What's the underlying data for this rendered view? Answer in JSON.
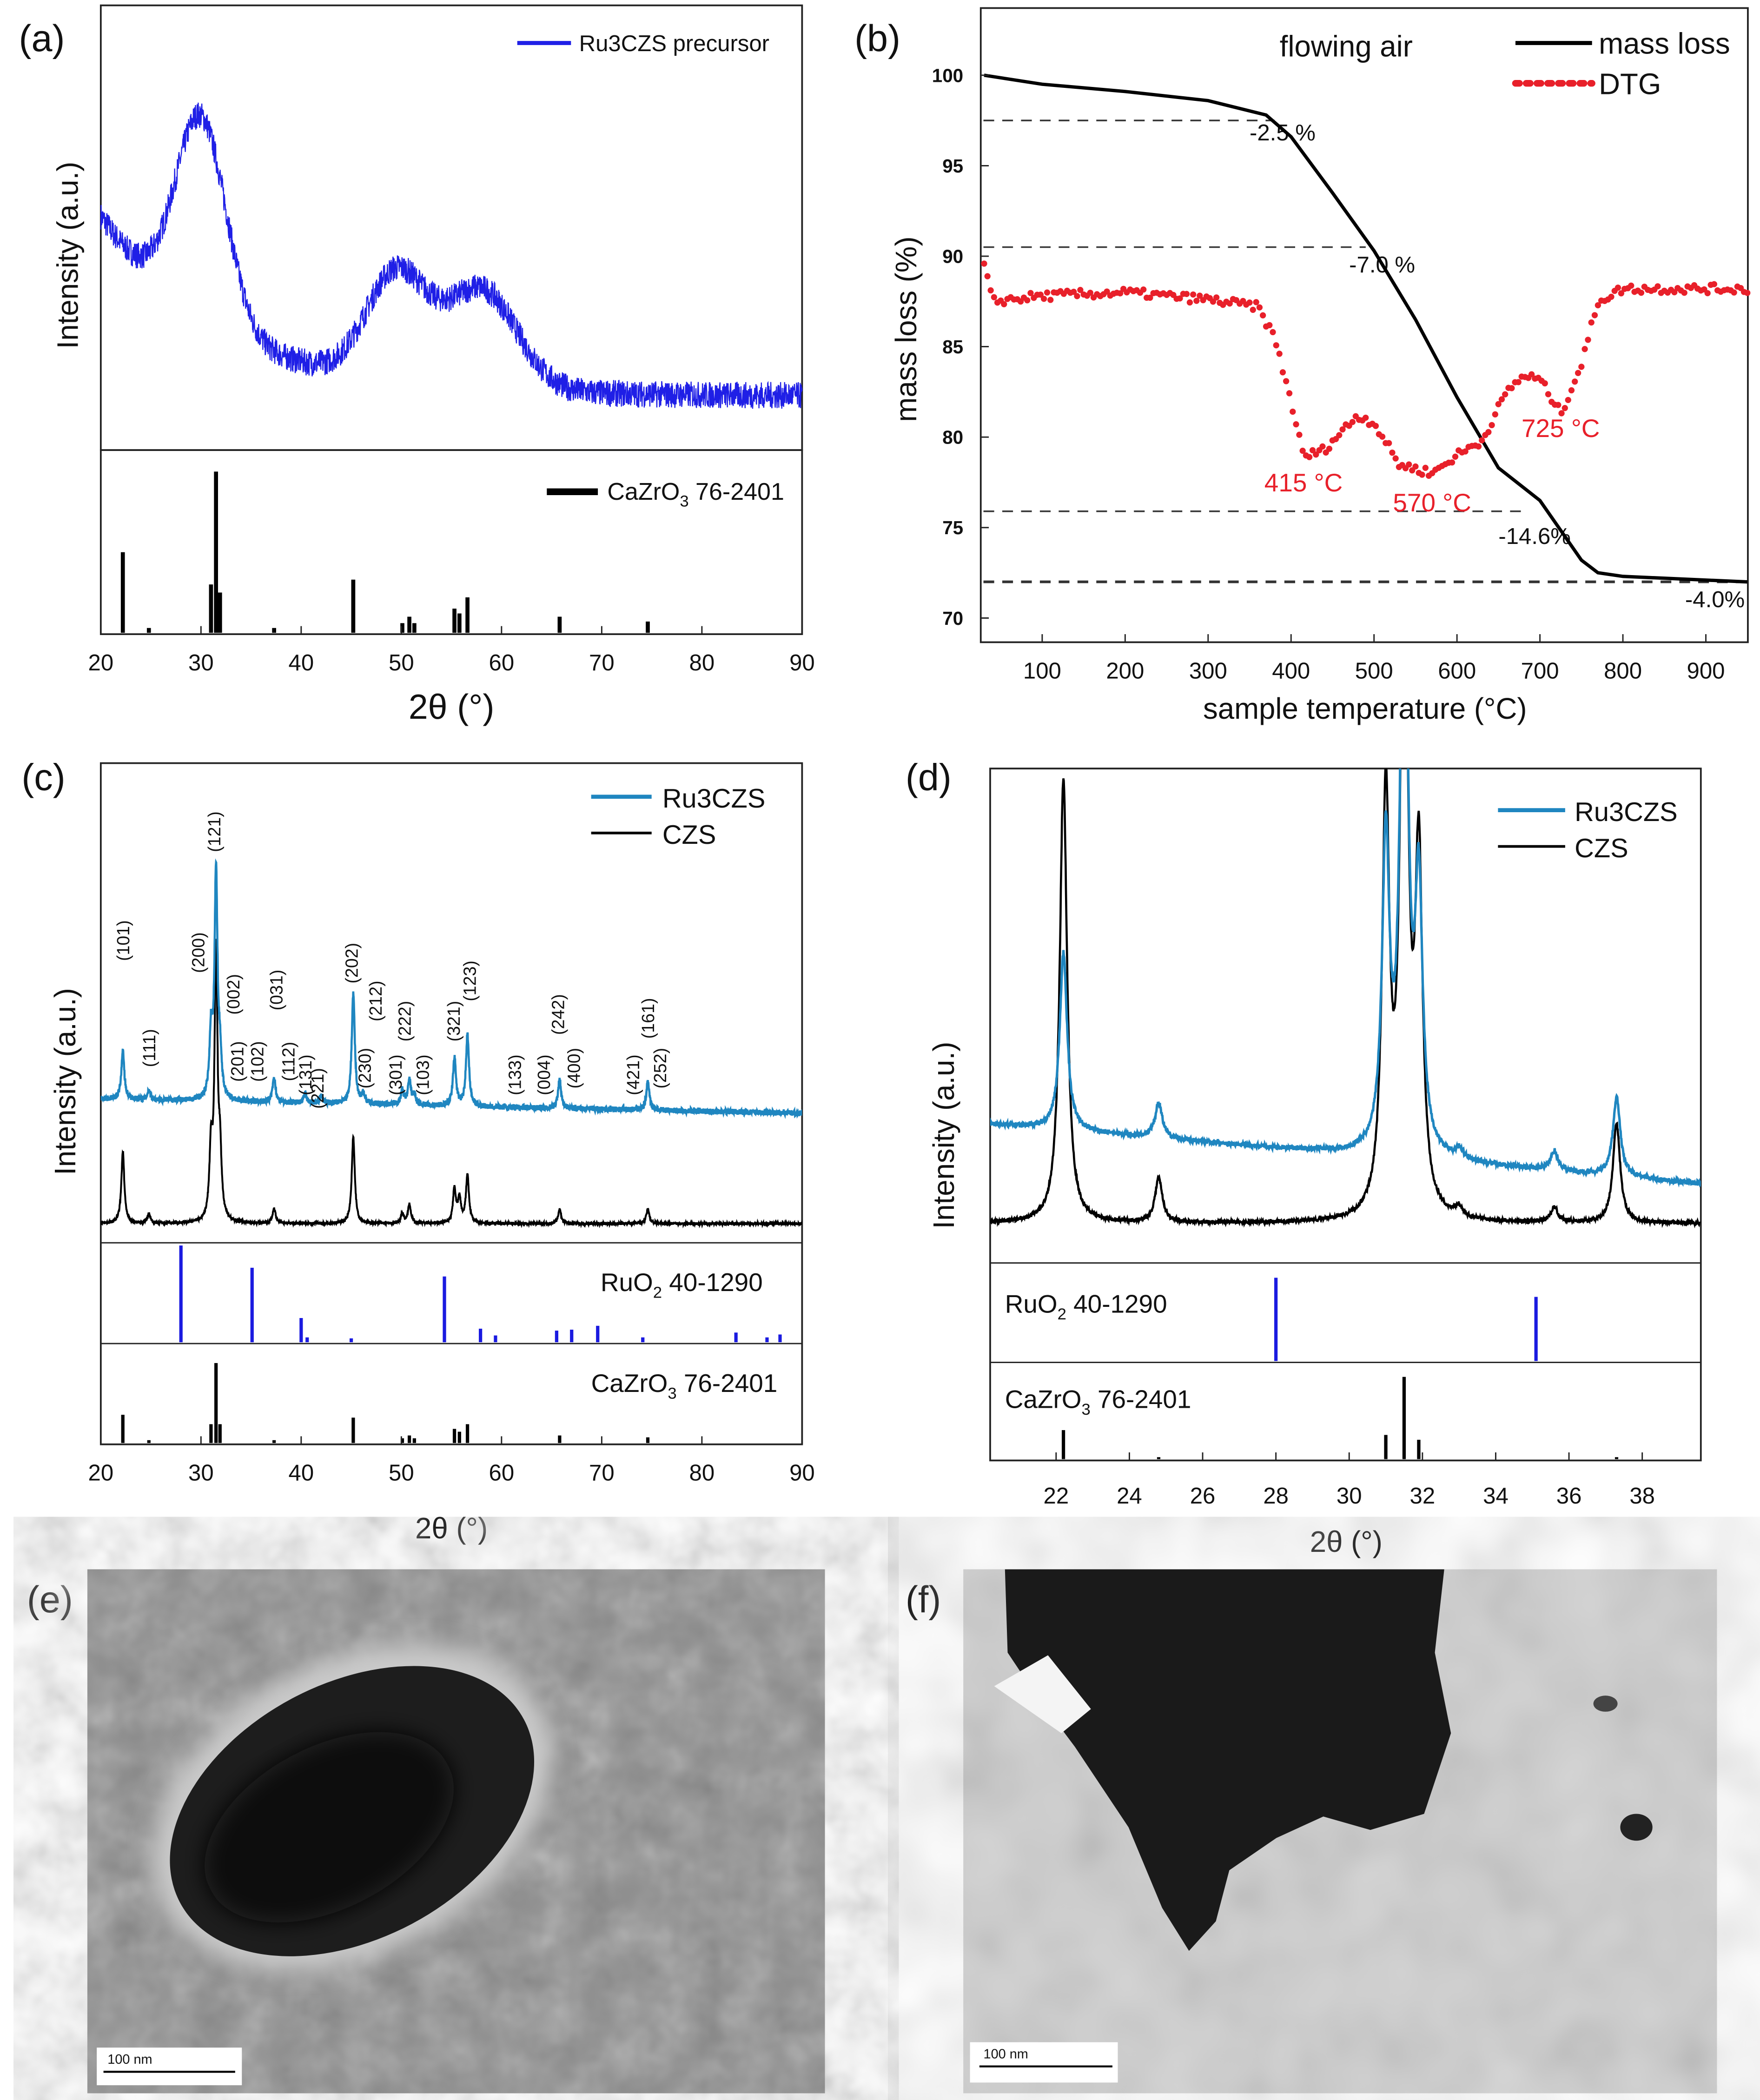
{
  "colors": {
    "precursor": "#1f1fe6",
    "ru3czs": "#1f86c0",
    "czs": "#000000",
    "dtg": "#e8202a",
    "ruo2_ref": "#1a1ae0",
    "cazro3_ref": "#000000"
  },
  "panel_labels": [
    "(a)",
    "(b)",
    "(c)",
    "(d)",
    "(e)",
    "(f)"
  ],
  "chart_data": [
    {
      "panel": "a",
      "type": "line",
      "xlabel": "2θ (°)",
      "ylabel": "Intensity (a.u.)",
      "xlim": [
        20,
        90
      ],
      "xticks": [
        20,
        30,
        40,
        50,
        60,
        70,
        80,
        90
      ],
      "ylim": [
        0,
        100
      ],
      "legend": "top-right",
      "series": [
        {
          "name": "Ru3CZS precursor",
          "background": {
            "offset": 12,
            "amp": 40,
            "decay": 12
          },
          "noise": 3,
          "hwhm": 0,
          "gauss_peaks": [
            [
              30,
              45,
              2.5
            ],
            [
              49.5,
              24,
              3
            ],
            [
              58,
              22,
              3.5
            ]
          ]
        }
      ],
      "reference": {
        "label_main": "CaZrO",
        "label_sub": "3",
        "label_rest": " 76-2401",
        "sticks": [
          [
            22.2,
            0.5
          ],
          [
            24.8,
            0.03
          ],
          [
            31.0,
            0.3
          ],
          [
            31.5,
            1.0
          ],
          [
            31.9,
            0.25
          ],
          [
            37.3,
            0.03
          ],
          [
            45.2,
            0.33
          ],
          [
            50.1,
            0.06
          ],
          [
            50.8,
            0.1
          ],
          [
            51.3,
            0.06
          ],
          [
            55.3,
            0.15
          ],
          [
            55.8,
            0.12
          ],
          [
            56.6,
            0.22
          ],
          [
            65.8,
            0.1
          ],
          [
            74.6,
            0.07
          ]
        ]
      }
    },
    {
      "panel": "b",
      "type": "line",
      "xlabel": "sample temperature (°C)",
      "ylabel": "mass loss (%)",
      "xlim": [
        30,
        950
      ],
      "ylim": [
        70,
        100
      ],
      "xticks": [
        100,
        200,
        300,
        400,
        500,
        600,
        700,
        800,
        900
      ],
      "yticks": [
        100,
        95,
        90,
        85,
        80,
        75,
        70
      ],
      "annotation_title": "flowing air",
      "series": [
        {
          "name": "mass loss",
          "style": "solid",
          "points": [
            [
              30,
              100
            ],
            [
              100,
              99.5
            ],
            [
              200,
              99.1
            ],
            [
              300,
              98.6
            ],
            [
              370,
              97.8
            ],
            [
              400,
              96.6
            ],
            [
              450,
              93.5
            ],
            [
              500,
              90.3
            ],
            [
              550,
              86.5
            ],
            [
              600,
              82.2
            ],
            [
              650,
              78.3
            ],
            [
              700,
              76.5
            ],
            [
              750,
              73.2
            ],
            [
              770,
              72.5
            ],
            [
              800,
              72.3
            ],
            [
              950,
              72.0
            ]
          ]
        },
        {
          "name": "DTG",
          "style": "dotted",
          "points": [
            [
              30,
              89.5
            ],
            [
              40,
              87.5
            ],
            [
              100,
              87.8
            ],
            [
              200,
              88
            ],
            [
              300,
              87.6
            ],
            [
              360,
              87.2
            ],
            [
              380,
              85.5
            ],
            [
              400,
              82
            ],
            [
              415,
              78.9
            ],
            [
              440,
              79.3
            ],
            [
              480,
              81.2
            ],
            [
              500,
              80.8
            ],
            [
              530,
              78.5
            ],
            [
              570,
              78
            ],
            [
              600,
              79
            ],
            [
              630,
              79.8
            ],
            [
              660,
              82.5
            ],
            [
              680,
              83.4
            ],
            [
              700,
              83.2
            ],
            [
              725,
              81.3
            ],
            [
              750,
              84
            ],
            [
              770,
              87.5
            ],
            [
              800,
              88.2
            ],
            [
              950,
              88.2
            ]
          ]
        }
      ],
      "steps": [
        {
          "level": 97.5,
          "to": 380,
          "label": "-2.5 %",
          "lx": 350,
          "ly": 96.4
        },
        {
          "level": 90.5,
          "to": 490,
          "label": "-7.0 %",
          "lx": 470,
          "ly": 89.1
        },
        {
          "level": 75.9,
          "to": 685,
          "label": "-14.6%",
          "lx": 650,
          "ly": 74.1
        },
        {
          "level": 72.0,
          "to": 950,
          "label": "-4.0%",
          "lx": 875,
          "ly": 70.6,
          "bold": true
        }
      ],
      "dtg_labels": [
        {
          "label": "415 °C",
          "x": 415,
          "y": 77.0
        },
        {
          "label": "570 °C",
          "x": 570,
          "y": 75.9
        },
        {
          "label": "725 °C",
          "x": 725,
          "y": 80.0
        }
      ]
    },
    {
      "panel": "c",
      "type": "line",
      "xlabel": "2θ (°)",
      "ylabel": "Intensity (a.u.)",
      "xlim": [
        20,
        90
      ],
      "xticks": [
        20,
        30,
        40,
        50,
        60,
        70,
        80,
        90
      ],
      "ylim": [
        0,
        100
      ],
      "legend": "top-right",
      "series": [
        {
          "name": "Ru3CZS",
          "base": [
            30,
            27
          ],
          "hwhm": 0.18,
          "noise": 0.6,
          "peaks": [
            [
              22.2,
              10
            ],
            [
              24.8,
              2
            ],
            [
              31.0,
              13
            ],
            [
              31.5,
              47
            ],
            [
              31.9,
              8
            ],
            [
              37.3,
              5
            ],
            [
              40.4,
              2
            ],
            [
              42,
              1.5
            ],
            [
              45.2,
              23
            ],
            [
              46.2,
              2
            ],
            [
              50.1,
              3
            ],
            [
              50.8,
              5
            ],
            [
              51.3,
              2
            ],
            [
              55.3,
              10
            ],
            [
              56.6,
              15
            ],
            [
              65.8,
              6
            ],
            [
              74.6,
              6
            ]
          ]
        },
        {
          "name": "CZS",
          "base": [
            4,
            4
          ],
          "hwhm": 0.18,
          "noise": 0.3,
          "peaks": [
            [
              22.2,
              15
            ],
            [
              24.8,
              2
            ],
            [
              31.0,
              14
            ],
            [
              31.5,
              56
            ],
            [
              31.9,
              12
            ],
            [
              37.3,
              3
            ],
            [
              45.2,
              18
            ],
            [
              50.1,
              2
            ],
            [
              50.8,
              4
            ],
            [
              55.3,
              7
            ],
            [
              55.8,
              5
            ],
            [
              56.6,
              10
            ],
            [
              65.8,
              3
            ],
            [
              74.6,
              3
            ]
          ]
        }
      ],
      "hkl": [
        [
          "(101)",
          22.3,
          63
        ],
        [
          "(111)",
          24.9,
          40.6
        ],
        [
          "(200)",
          29.8,
          60.5
        ],
        [
          "(121)",
          31.4,
          85.7
        ],
        [
          "(002)",
          33.3,
          51.8
        ],
        [
          "(201)",
          33.7,
          37.8
        ],
        [
          "(102)",
          35.7,
          37.8
        ],
        [
          "(031)",
          37.6,
          52.7
        ],
        [
          "(112)",
          38.8,
          37.8
        ],
        [
          "(131)",
          40.5,
          35
        ],
        [
          "(221)",
          41.7,
          32.2
        ],
        [
          "(202)",
          45.1,
          58.3
        ],
        [
          "(212)",
          47.5,
          50.4
        ],
        [
          "(230)",
          46.4,
          36.4
        ],
        [
          "(222)",
          50.4,
          46.2
        ],
        [
          "(301)",
          49.5,
          35
        ],
        [
          "(103)",
          52.2,
          35
        ],
        [
          "(321)",
          55.3,
          46.2
        ],
        [
          "(123)",
          56.9,
          54.6
        ],
        [
          "(133)",
          61.4,
          35
        ],
        [
          "(004)",
          64.3,
          35
        ],
        [
          "(242)",
          65.7,
          47.6
        ],
        [
          "(400)",
          67.3,
          36.4
        ],
        [
          "(421)",
          73.2,
          35
        ],
        [
          "(161)",
          74.7,
          46.8
        ],
        [
          "(252)",
          75.9,
          36.4
        ]
      ],
      "references": [
        {
          "label_main": "RuO",
          "label_sub": "2",
          "label_rest": " 40-1290",
          "color_key": "ruo2_ref",
          "sticks": [
            [
              28.0,
              1.0
            ],
            [
              35.1,
              0.77
            ],
            [
              40.0,
              0.25
            ],
            [
              40.6,
              0.05
            ],
            [
              45.0,
              0.04
            ],
            [
              54.3,
              0.68
            ],
            [
              57.9,
              0.14
            ],
            [
              59.4,
              0.07
            ],
            [
              65.5,
              0.12
            ],
            [
              67.0,
              0.13
            ],
            [
              69.6,
              0.17
            ],
            [
              74.1,
              0.05
            ],
            [
              83.4,
              0.1
            ],
            [
              86.5,
              0.05
            ],
            [
              87.8,
              0.08
            ]
          ]
        },
        {
          "label_main": "CaZrO",
          "label_sub": "3",
          "label_rest": " 76-2401",
          "color_key": "cazro3_ref",
          "sticks": [
            [
              22.2,
              0.3
            ],
            [
              24.8,
              0.03
            ],
            [
              31.0,
              0.2
            ],
            [
              31.5,
              0.85
            ],
            [
              31.9,
              0.2
            ],
            [
              37.3,
              0.03
            ],
            [
              45.2,
              0.27
            ],
            [
              50.1,
              0.05
            ],
            [
              50.8,
              0.08
            ],
            [
              51.3,
              0.05
            ],
            [
              55.3,
              0.15
            ],
            [
              55.8,
              0.12
            ],
            [
              56.6,
              0.2
            ],
            [
              65.8,
              0.08
            ],
            [
              74.6,
              0.06
            ]
          ]
        }
      ]
    },
    {
      "panel": "d",
      "type": "line",
      "xlabel": "2θ (°)",
      "ylabel": "Intensity (a.u.)",
      "xlim": [
        20.2,
        39.6
      ],
      "xticks": [
        22,
        24,
        26,
        28,
        30,
        32,
        34,
        36,
        38
      ],
      "ylim": [
        0,
        100
      ],
      "legend": "top-right",
      "series": [
        {
          "name": "Ru3CZS",
          "base": [
            28,
            16
          ],
          "hwhm": 0.12,
          "noise": 0.5,
          "peaks": [
            [
              22.2,
              36
            ],
            [
              24.8,
              7
            ],
            [
              31.0,
              62
            ],
            [
              31.5,
              130
            ],
            [
              31.9,
              52
            ],
            [
              33.0,
              2
            ],
            [
              35.6,
              4
            ],
            [
              37.3,
              16
            ]
          ]
        },
        {
          "name": "CZS",
          "base": [
            8,
            8
          ],
          "hwhm": 0.12,
          "noise": 0.4,
          "peaks": [
            [
              22.2,
              90
            ],
            [
              24.8,
              9
            ],
            [
              31.0,
              84
            ],
            [
              31.5,
              140
            ],
            [
              31.9,
              70
            ],
            [
              33.0,
              2
            ],
            [
              35.6,
              3
            ],
            [
              37.3,
              20
            ]
          ]
        }
      ],
      "references": [
        {
          "label_main": "RuO",
          "label_sub": "2",
          "label_rest": " 40-1290",
          "color_key": "ruo2_ref",
          "sticks": [
            [
              28.0,
              1.0
            ],
            [
              35.1,
              0.77
            ]
          ]
        },
        {
          "label_main": "CaZrO",
          "label_sub": "3",
          "label_rest": " 76-2401",
          "color_key": "cazro3_ref",
          "sticks": [
            [
              22.2,
              0.3
            ],
            [
              24.8,
              0.02
            ],
            [
              31.0,
              0.25
            ],
            [
              31.5,
              0.85
            ],
            [
              31.9,
              0.2
            ],
            [
              37.3,
              0.02
            ]
          ]
        }
      ]
    }
  ],
  "sem": {
    "e_scale": "100 nm",
    "f_scale": "100 nm"
  }
}
